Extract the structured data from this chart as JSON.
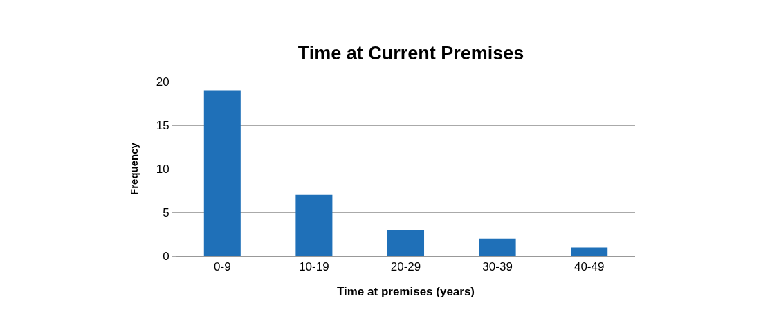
{
  "chart_data": {
    "type": "bar",
    "title": "Time at Current Premises",
    "xlabel": "Time at premises (years)",
    "ylabel": "Frequency",
    "categories": [
      "0-9",
      "10-19",
      "20-29",
      "30-39",
      "40-49"
    ],
    "values": [
      19,
      7,
      3,
      2,
      1
    ],
    "color": "#1f70b8",
    "ylim": [
      0,
      20
    ],
    "yticks": [
      0,
      5,
      10,
      15,
      20
    ],
    "grid": "y"
  }
}
